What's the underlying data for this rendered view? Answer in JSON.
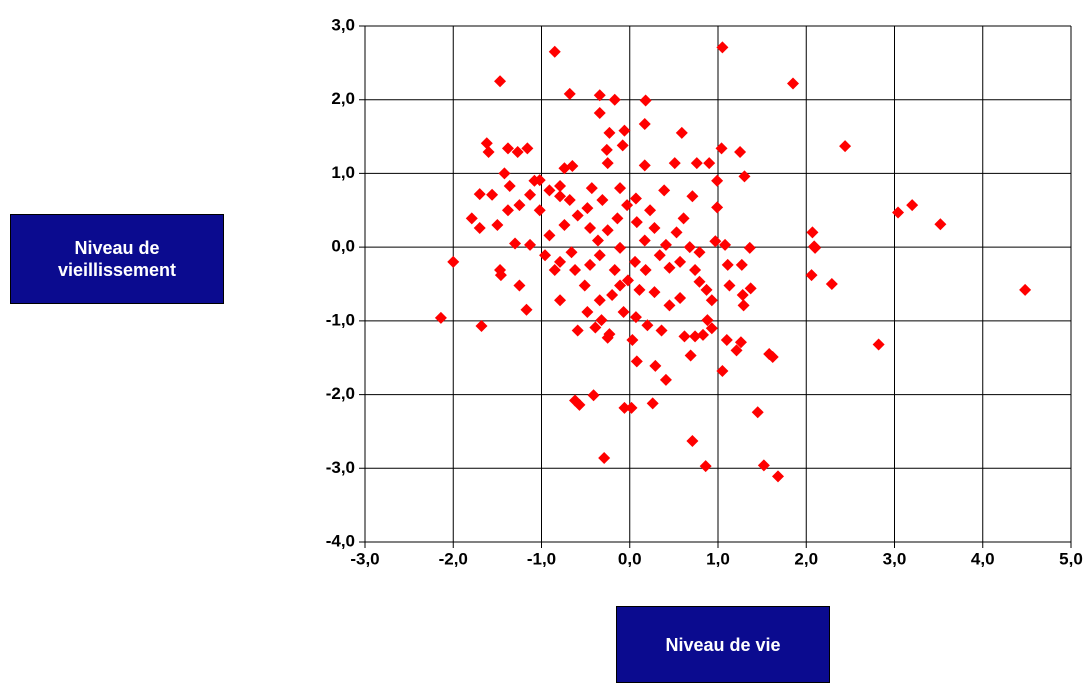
{
  "chart_data": {
    "type": "scatter",
    "x_label": "Niveau de vie",
    "y_label": "Niveau de vieillissement",
    "color": "#ff0000",
    "grid": true,
    "xlim": [
      -3,
      5
    ],
    "ylim": [
      -4,
      3
    ],
    "xticks": [
      {
        "value": -3,
        "label": "-3,0"
      },
      {
        "value": -2,
        "label": "-2,0"
      },
      {
        "value": -1,
        "label": "-1,0"
      },
      {
        "value": 0,
        "label": "0,0"
      },
      {
        "value": 1,
        "label": "1,0"
      },
      {
        "value": 2,
        "label": "2,0"
      },
      {
        "value": 3,
        "label": "3,0"
      },
      {
        "value": 4,
        "label": "4,0"
      },
      {
        "value": 5,
        "label": "5,0"
      }
    ],
    "yticks": [
      {
        "value": -4,
        "label": "-4,0"
      },
      {
        "value": -3,
        "label": "-3,0"
      },
      {
        "value": -2,
        "label": "-2,0"
      },
      {
        "value": -1,
        "label": "-1,0"
      },
      {
        "value": 0,
        "label": "0,0"
      },
      {
        "value": 1,
        "label": "1,0"
      },
      {
        "value": 2,
        "label": "2,0"
      },
      {
        "value": 3,
        "label": "3,0"
      }
    ],
    "x": [
      -0.85,
      1.05,
      1.85,
      -1.47,
      -0.68,
      -0.34,
      -0.17,
      0.18,
      -0.34,
      -0.06,
      0.17,
      -0.23,
      0.59,
      -1.62,
      -1.6,
      -1.38,
      -1.16,
      -1.27,
      -0.26,
      -0.08,
      1.04,
      1.25,
      2.44,
      0.17,
      0.51,
      0.76,
      0.9,
      -0.74,
      -0.65,
      -0.25,
      -1.42,
      -1.08,
      -1.02,
      0.99,
      1.3,
      -1.7,
      -1.56,
      -1.36,
      -0.79,
      -0.43,
      -0.11,
      0.39,
      0.71,
      0.99,
      3.04,
      3.2,
      3.52,
      2.07,
      2.09,
      2.1,
      2.06,
      2.29,
      4.48,
      2.82,
      -2.14,
      -2.0,
      -1.68,
      -1.17,
      -1.25,
      -1.47,
      -1.46,
      -0.62,
      -0.57,
      -0.41,
      -0.29,
      -0.06,
      0.02,
      0.26,
      0.71,
      0.86,
      1.45,
      1.52,
      1.68,
      1.05,
      0.69,
      0.41,
      0.08,
      0.29,
      1.58,
      1.62,
      1.26,
      1.21,
      1.1,
      0.83,
      0.93,
      0.74,
      0.62,
      0.36,
      0.2,
      0.07,
      -0.07,
      -0.32,
      -0.39,
      -0.23,
      -0.25,
      0.03,
      1.29,
      1.28,
      1.37,
      1.27,
      1.36,
      0.97,
      0.61,
      0.53,
      0.34,
      0.45,
      0.57,
      0.74,
      0.79,
      0.87,
      0.93,
      0.88,
      0.57,
      0.45,
      0.28,
      0.18,
      0.06,
      -0.11,
      -0.2,
      -0.34,
      -0.51,
      -0.62,
      -0.79,
      -0.96,
      -1.13,
      -1.3,
      -1.5,
      -1.38,
      -1.25,
      -1.02,
      -0.91,
      -0.74,
      -0.59,
      -0.45,
      -0.36,
      -0.25,
      -0.14,
      -0.03,
      0.08,
      0.17,
      0.28,
      0.41,
      -0.34,
      -0.45,
      -0.17,
      0.23,
      0.07,
      -0.68,
      -0.91,
      -1.7,
      -1.79,
      -1.13,
      -0.31,
      -0.48,
      -0.79,
      -0.11,
      -0.02,
      0.11,
      -0.48,
      -0.59,
      -0.79,
      -0.66,
      -0.85,
      0.68,
      0.79,
      1.08,
      1.11,
      1.13
    ],
    "values": [
      2.65,
      2.71,
      2.22,
      2.25,
      2.08,
      2.06,
      2.0,
      1.99,
      1.82,
      1.58,
      1.67,
      1.55,
      1.55,
      1.41,
      1.29,
      1.34,
      1.34,
      1.29,
      1.32,
      1.38,
      1.34,
      1.29,
      1.37,
      1.11,
      1.14,
      1.14,
      1.14,
      1.07,
      1.1,
      1.14,
      1.0,
      0.9,
      0.91,
      0.9,
      0.96,
      0.72,
      0.71,
      0.83,
      0.83,
      0.8,
      0.8,
      0.77,
      0.69,
      0.54,
      0.47,
      0.57,
      0.31,
      0.2,
      0.01,
      -0.01,
      -0.38,
      -0.5,
      -0.58,
      -1.32,
      -0.96,
      -0.2,
      -1.07,
      -0.85,
      -0.52,
      -0.31,
      -0.38,
      -2.08,
      -2.14,
      -2.01,
      -2.86,
      -2.18,
      -2.18,
      -2.12,
      -2.63,
      -2.97,
      -2.24,
      -2.96,
      -3.11,
      -1.68,
      -1.47,
      -1.8,
      -1.55,
      -1.61,
      -1.45,
      -1.49,
      -1.29,
      -1.4,
      -1.26,
      -1.19,
      -1.1,
      -1.21,
      -1.21,
      -1.13,
      -1.06,
      -0.95,
      -0.88,
      -0.99,
      -1.09,
      -1.18,
      -1.23,
      -1.26,
      -0.79,
      -0.65,
      -0.56,
      -0.24,
      -0.01,
      0.08,
      0.39,
      0.2,
      -0.11,
      -0.28,
      -0.2,
      -0.31,
      -0.47,
      -0.58,
      -0.72,
      -0.99,
      -0.69,
      -0.79,
      -0.61,
      -0.31,
      -0.2,
      -0.52,
      -0.65,
      -0.72,
      -0.52,
      -0.31,
      -0.2,
      -0.11,
      0.03,
      0.05,
      0.3,
      0.5,
      0.57,
      0.5,
      0.16,
      0.3,
      0.43,
      0.26,
      0.09,
      0.23,
      0.39,
      0.57,
      0.34,
      0.09,
      0.26,
      0.03,
      -0.11,
      -0.24,
      -0.31,
      0.5,
      0.66,
      0.64,
      0.77,
      0.26,
      0.39,
      0.71,
      0.64,
      0.53,
      0.69,
      -0.01,
      -0.45,
      -0.58,
      -0.88,
      -1.13,
      -0.72,
      -0.07,
      -0.31,
      0,
      -0.07,
      0.03,
      -0.24,
      -0.52
    ]
  }
}
